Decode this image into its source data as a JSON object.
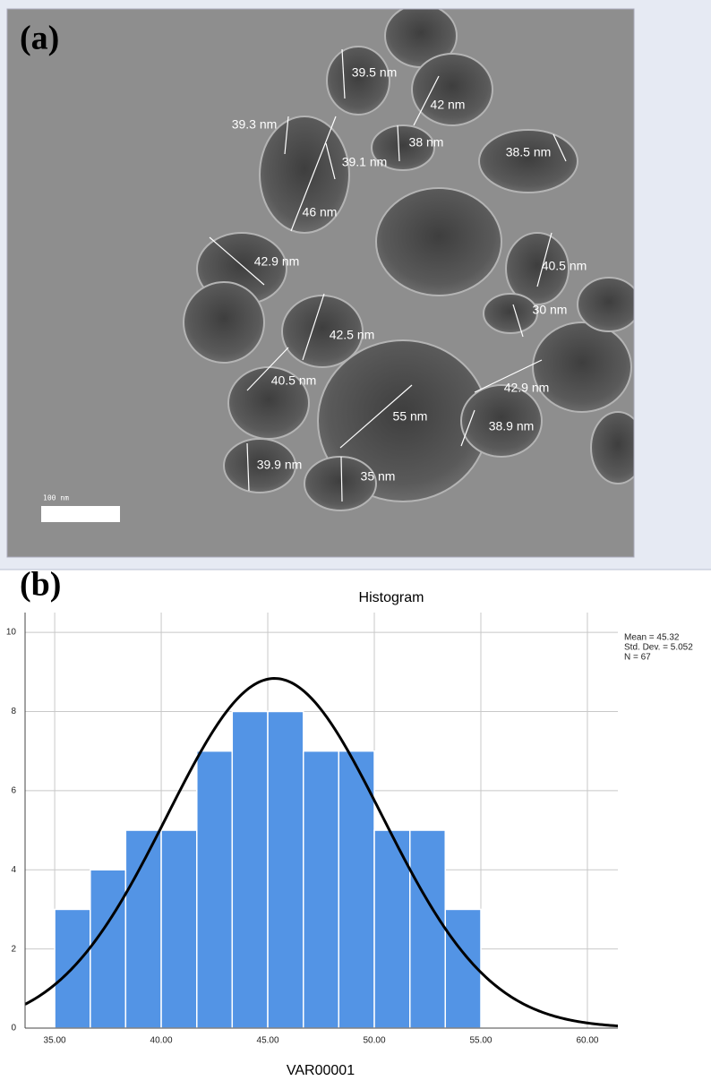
{
  "panel_a": {
    "label": "(a)",
    "annotations": [
      "39.5 nm",
      "42 nm",
      "39.3 nm",
      "38 nm",
      "39.1 nm",
      "38.5 nm",
      "46 nm",
      "42.9 nm",
      "40.5 nm",
      "30 nm",
      "42.5 nm",
      "40.5 nm",
      "42.9 nm",
      "55 nm",
      "38.9 nm",
      "39.9 nm",
      "35 nm"
    ],
    "scale_bar": "100 nm"
  },
  "panel_b": {
    "label": "(b)"
  },
  "chart_data": {
    "type": "histogram",
    "title": "Histogram",
    "x_label": "VAR00001",
    "bins": [
      35,
      36.67,
      38.33,
      40,
      41.67,
      43.33,
      45,
      46.67,
      48.33,
      50,
      51.67,
      53.33,
      55
    ],
    "values": [
      3,
      4,
      5,
      5,
      7,
      8,
      8,
      7,
      7,
      5,
      5,
      3
    ],
    "color": "#5394e5",
    "curve_color": "#000000",
    "xlim": [
      33.61,
      61.43
    ],
    "ylim": [
      0,
      10.5
    ],
    "xticks": [
      {
        "value": 35,
        "label": "35.00"
      },
      {
        "value": 40,
        "label": "40.00"
      },
      {
        "value": 45,
        "label": "45.00"
      },
      {
        "value": 50,
        "label": "50.00"
      },
      {
        "value": 55,
        "label": "55.00"
      },
      {
        "value": 60,
        "label": "60.00"
      }
    ],
    "yticks": [
      0,
      2,
      4,
      6,
      8,
      10
    ],
    "grid": true,
    "stats": {
      "mean": {
        "value": 45.32,
        "label": "Mean = 45.32"
      },
      "sd": {
        "value": 5.052,
        "label": "Std. Dev. = 5.052"
      },
      "n": {
        "value": 67,
        "label": "N = 67"
      }
    }
  }
}
